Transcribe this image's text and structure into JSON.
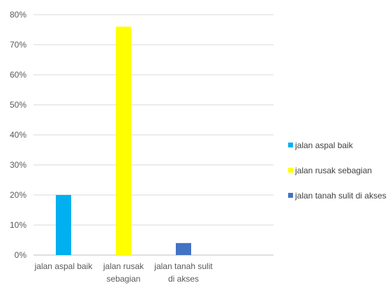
{
  "chart_data": {
    "type": "bar",
    "categories": [
      [
        "jalan aspal baik"
      ],
      [
        "jalan rusak",
        "sebagian"
      ],
      [
        "jalan tanah sulit",
        "di akses"
      ]
    ],
    "values": [
      0.2,
      0.76,
      0.04
    ],
    "colors": [
      "#00b0f0",
      "#ffff00",
      "#4472c4"
    ],
    "ylim": [
      0,
      0.8
    ],
    "yticks": [
      "0%",
      "10%",
      "20%",
      "30%",
      "40%",
      "50%",
      "60%",
      "70%",
      "80%"
    ],
    "grid": true,
    "legend": {
      "position": "right",
      "entries": [
        "jalan aspal baik",
        "jalan rusak sebagian",
        "jalan tanah sulit di akses"
      ]
    },
    "title": "",
    "xlabel": "",
    "ylabel": ""
  }
}
